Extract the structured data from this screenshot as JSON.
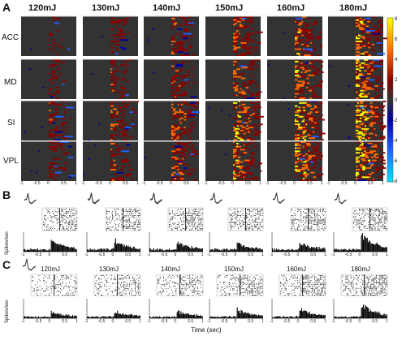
{
  "panels": {
    "a": "A",
    "b": "B",
    "c": "C"
  },
  "energies": [
    "120mJ",
    "130mJ",
    "140mJ",
    "150mJ",
    "160mJ",
    "180mJ"
  ],
  "regions": [
    "ACC",
    "MD",
    "SI",
    "VPL"
  ],
  "colorbar": {
    "ticks": [
      "8",
      "6",
      "4",
      "2",
      "0",
      "-2",
      "-4",
      "-6",
      "-8"
    ],
    "colors": {
      "pos_high": "#ffff00",
      "pos_mid": "#ff6a00",
      "pos_low": "#8b0000",
      "neutral": "#333333",
      "neg_low": "#0000a0",
      "neg_mid": "#2060ff",
      "neg_high": "#00e5ff"
    }
  },
  "heatmap_xticks": [
    "-1",
    "-0.5",
    "0",
    "0.5",
    "1"
  ],
  "raster_xticks": [
    "-1",
    "-0.5",
    "0",
    "0.5",
    "1"
  ],
  "psth_ylabel": "Spikes/sec",
  "xaxis_label": "Time (sec)"
}
